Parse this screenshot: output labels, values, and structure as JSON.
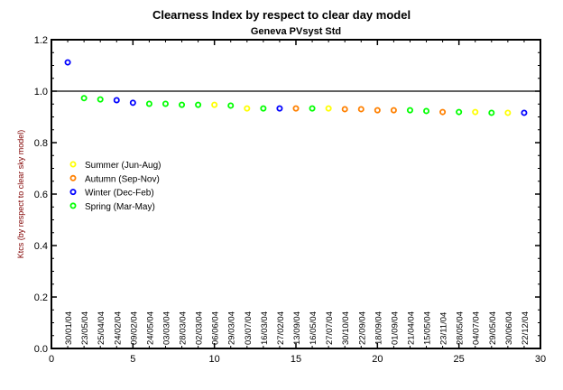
{
  "chart_data": {
    "type": "scatter",
    "title": "Clearness Index by respect to clear day model",
    "subtitle": "Geneva PVsyst Std",
    "xlabel": "",
    "ylabel": "Ktcs (by respect to clear sky model)",
    "xlim": [
      0,
      30
    ],
    "ylim": [
      0,
      1.2
    ],
    "xticks": [
      0,
      5,
      10,
      15,
      20,
      25,
      30
    ],
    "yticks": [
      "0.0",
      "0.2",
      "0.4",
      "0.6",
      "0.8",
      "1.0",
      "1.2"
    ],
    "reference_line": 1.0,
    "grid": false,
    "legend_position": "left-middle",
    "series": [
      {
        "name": "Summer (Jun-Aug)",
        "color": "#ffff00"
      },
      {
        "name": "Autumn (Sep-Nov)",
        "color": "#ff8000"
      },
      {
        "name": "Winter (Dec-Feb)",
        "color": "#0000ff"
      },
      {
        "name": "Spring (Mar-May)",
        "color": "#00ff00"
      }
    ],
    "points": [
      {
        "x": 1,
        "y": 1.112,
        "date": "30/01/04",
        "season": 2
      },
      {
        "x": 2,
        "y": 0.973,
        "date": "23/05/04",
        "season": 3
      },
      {
        "x": 3,
        "y": 0.968,
        "date": "25/04/04",
        "season": 3
      },
      {
        "x": 4,
        "y": 0.965,
        "date": "24/02/04",
        "season": 2
      },
      {
        "x": 5,
        "y": 0.955,
        "date": "09/02/04",
        "season": 2
      },
      {
        "x": 6,
        "y": 0.951,
        "date": "24/05/04",
        "season": 3
      },
      {
        "x": 7,
        "y": 0.951,
        "date": "03/03/04",
        "season": 3
      },
      {
        "x": 8,
        "y": 0.947,
        "date": "28/03/04",
        "season": 3
      },
      {
        "x": 9,
        "y": 0.947,
        "date": "02/03/04",
        "season": 3
      },
      {
        "x": 10,
        "y": 0.947,
        "date": "06/06/04",
        "season": 0
      },
      {
        "x": 11,
        "y": 0.944,
        "date": "29/03/04",
        "season": 3
      },
      {
        "x": 12,
        "y": 0.933,
        "date": "03/07/04",
        "season": 0
      },
      {
        "x": 13,
        "y": 0.933,
        "date": "16/03/04",
        "season": 3
      },
      {
        "x": 14,
        "y": 0.933,
        "date": "27/02/04",
        "season": 2
      },
      {
        "x": 15,
        "y": 0.933,
        "date": "13/09/04",
        "season": 1
      },
      {
        "x": 16,
        "y": 0.933,
        "date": "16/05/04",
        "season": 3
      },
      {
        "x": 17,
        "y": 0.933,
        "date": "27/07/04",
        "season": 0
      },
      {
        "x": 18,
        "y": 0.93,
        "date": "30/10/04",
        "season": 1
      },
      {
        "x": 19,
        "y": 0.93,
        "date": "22/09/04",
        "season": 1
      },
      {
        "x": 20,
        "y": 0.926,
        "date": "18/09/04",
        "season": 1
      },
      {
        "x": 21,
        "y": 0.926,
        "date": "01/09/04",
        "season": 1
      },
      {
        "x": 22,
        "y": 0.926,
        "date": "21/04/04",
        "season": 3
      },
      {
        "x": 23,
        "y": 0.923,
        "date": "15/05/04",
        "season": 3
      },
      {
        "x": 24,
        "y": 0.919,
        "date": "23/11/04",
        "season": 1
      },
      {
        "x": 25,
        "y": 0.919,
        "date": "28/05/04",
        "season": 3
      },
      {
        "x": 26,
        "y": 0.919,
        "date": "04/07/04",
        "season": 0
      },
      {
        "x": 27,
        "y": 0.916,
        "date": "29/05/04",
        "season": 3
      },
      {
        "x": 28,
        "y": 0.916,
        "date": "30/06/04",
        "season": 0
      },
      {
        "x": 29,
        "y": 0.916,
        "date": "22/12/04",
        "season": 2
      }
    ]
  }
}
